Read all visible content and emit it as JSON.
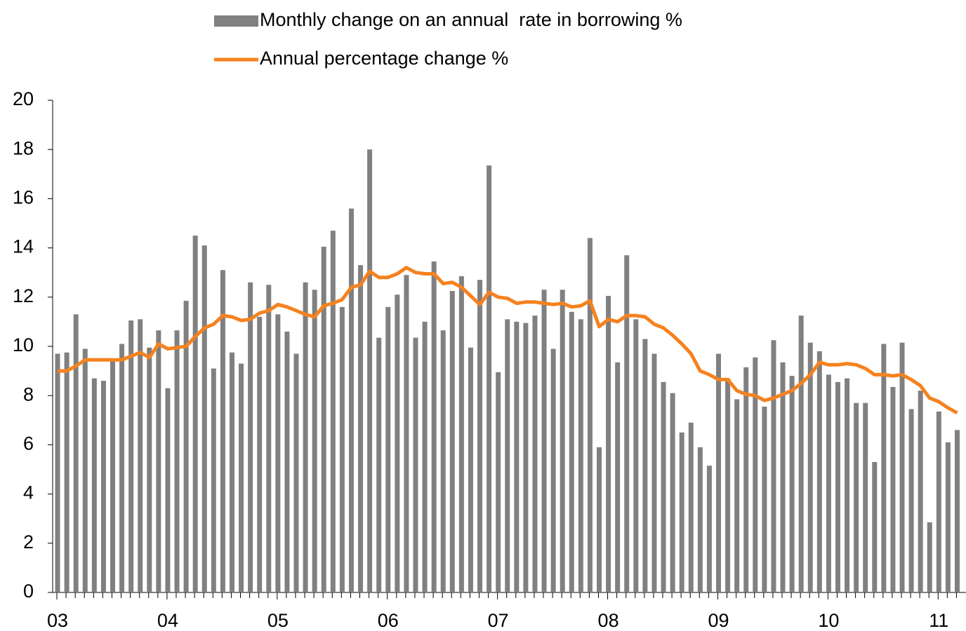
{
  "chart_data": {
    "type": "bar-line",
    "categories": [
      "03",
      null,
      null,
      null,
      null,
      null,
      null,
      null,
      null,
      null,
      null,
      null,
      "04",
      null,
      null,
      null,
      null,
      null,
      null,
      null,
      null,
      null,
      null,
      null,
      "05",
      null,
      null,
      null,
      null,
      null,
      null,
      null,
      null,
      null,
      null,
      null,
      "06",
      null,
      null,
      null,
      null,
      null,
      null,
      null,
      null,
      null,
      null,
      null,
      "07",
      null,
      null,
      null,
      null,
      null,
      null,
      null,
      null,
      null,
      null,
      null,
      "08",
      null,
      null,
      null,
      null,
      null,
      null,
      null,
      null,
      null,
      null,
      null,
      "09",
      null,
      null,
      null,
      null,
      null,
      null,
      null,
      null,
      null,
      null,
      null,
      "10",
      null,
      null,
      null,
      null,
      null,
      null,
      null,
      null,
      null,
      null,
      null,
      "11",
      null,
      null
    ],
    "series": [
      {
        "name": "Monthly change on an annual  rate in borrowing %",
        "type": "bar",
        "color": "#808080",
        "values": [
          9.7,
          9.75,
          11.3,
          9.9,
          8.7,
          8.6,
          9.4,
          10.1,
          11.05,
          11.1,
          9.95,
          10.65,
          8.3,
          10.65,
          11.85,
          14.5,
          14.1,
          9.1,
          13.1,
          9.75,
          9.3,
          12.6,
          11.2,
          12.5,
          11.3,
          10.6,
          9.7,
          12.6,
          12.3,
          14.05,
          14.7,
          11.6,
          15.6,
          13.3,
          18.0,
          10.35,
          11.6,
          12.1,
          12.9,
          10.35,
          11.0,
          13.45,
          10.65,
          12.25,
          12.85,
          9.95,
          12.7,
          17.35,
          8.95,
          11.1,
          11.0,
          10.95,
          11.25,
          12.3,
          9.9,
          12.3,
          11.4,
          11.1,
          14.4,
          5.9,
          12.05,
          9.35,
          13.7,
          11.1,
          10.3,
          9.7,
          8.55,
          8.1,
          6.5,
          6.9,
          5.9,
          5.15,
          9.7,
          8.7,
          7.85,
          9.15,
          9.55,
          7.55,
          10.25,
          9.35,
          8.8,
          11.25,
          10.15,
          9.8,
          8.85,
          8.55,
          8.7,
          7.7,
          7.7,
          5.3,
          10.1,
          8.35,
          10.15,
          7.45,
          8.2,
          2.85,
          7.35,
          6.1,
          6.6
        ]
      },
      {
        "name": "Annual percentage change %",
        "type": "line",
        "color": "#f5821f",
        "values": [
          9.0,
          9.0,
          9.2,
          9.45,
          9.45,
          9.45,
          9.45,
          9.45,
          9.6,
          9.75,
          9.55,
          10.1,
          9.9,
          9.95,
          10.0,
          10.4,
          10.75,
          10.9,
          11.25,
          11.2,
          11.05,
          11.1,
          11.35,
          11.45,
          11.7,
          11.6,
          11.45,
          11.3,
          11.2,
          11.65,
          11.75,
          11.9,
          12.4,
          12.5,
          13.05,
          12.8,
          12.8,
          12.95,
          13.2,
          13.0,
          12.95,
          12.95,
          12.55,
          12.6,
          12.4,
          12.05,
          11.7,
          12.2,
          12.0,
          11.95,
          11.75,
          11.8,
          11.8,
          11.75,
          11.7,
          11.75,
          11.6,
          11.65,
          11.85,
          10.8,
          11.1,
          11.0,
          11.25,
          11.25,
          11.2,
          10.9,
          10.75,
          10.45,
          10.1,
          9.7,
          9.0,
          8.85,
          8.65,
          8.65,
          8.2,
          8.05,
          8.0,
          7.8,
          7.9,
          8.05,
          8.2,
          8.5,
          8.85,
          9.35,
          9.25,
          9.25,
          9.3,
          9.25,
          9.1,
          8.85,
          8.85,
          8.8,
          8.85,
          8.65,
          8.4,
          7.9,
          7.75,
          7.5,
          7.3
        ]
      }
    ],
    "ylim": [
      0,
      20
    ],
    "yticks": [
      0,
      2,
      4,
      6,
      8,
      10,
      12,
      14,
      16,
      18,
      20
    ],
    "legend": "top"
  }
}
